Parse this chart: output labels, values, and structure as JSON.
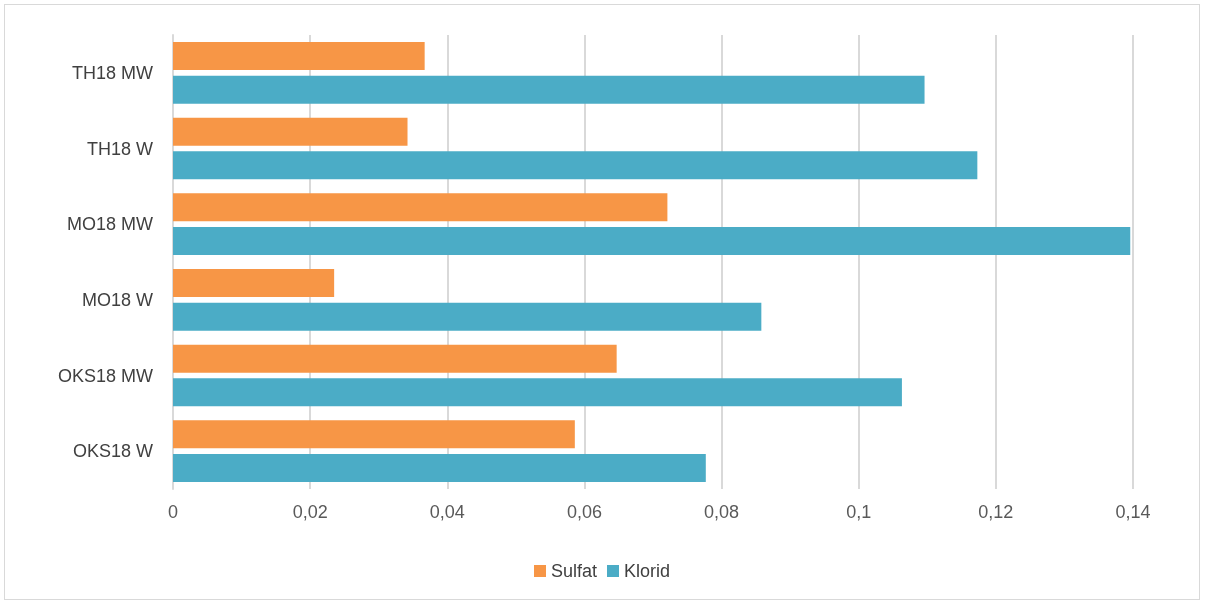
{
  "chart_data": {
    "type": "bar",
    "orientation": "horizontal",
    "categories": [
      "TH18 MW",
      "TH18 W",
      "MO18 MW",
      "MO18 W",
      "OKS18 MW",
      "OKS18 W"
    ],
    "series": [
      {
        "name": "Sulfat",
        "color": "#f79646",
        "values": [
          0.0367,
          0.0342,
          0.0721,
          0.0235,
          0.0647,
          0.0586
        ]
      },
      {
        "name": "Klorid",
        "color": "#4bacc6",
        "values": [
          0.1096,
          0.1173,
          0.1396,
          0.0858,
          0.1063,
          0.0777
        ]
      }
    ],
    "xlim": [
      0,
      0.14
    ],
    "xticks": [
      {
        "value": 0,
        "label": "0"
      },
      {
        "value": 0.02,
        "label": "0,02"
      },
      {
        "value": 0.04,
        "label": "0,04"
      },
      {
        "value": 0.06,
        "label": "0,06"
      },
      {
        "value": 0.08,
        "label": "0,08"
      },
      {
        "value": 0.1,
        "label": "0,1"
      },
      {
        "value": 0.12,
        "label": "0,12"
      },
      {
        "value": 0.14,
        "label": "0,14"
      }
    ],
    "grid": "x",
    "legend": "bottom"
  }
}
